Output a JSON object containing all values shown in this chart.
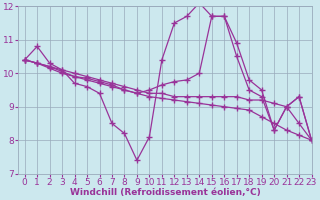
{
  "lines": [
    {
      "x": [
        0,
        1,
        2,
        3,
        4,
        5,
        6,
        7,
        8,
        9,
        10,
        11,
        12,
        13,
        14,
        15,
        16,
        17,
        18,
        19,
        20,
        21,
        22,
        23
      ],
      "y": [
        10.4,
        10.8,
        10.3,
        10.1,
        9.7,
        9.6,
        9.4,
        8.5,
        8.2,
        7.4,
        8.1,
        10.4,
        11.5,
        11.7,
        12.1,
        11.7,
        11.7,
        10.9,
        9.8,
        9.5,
        8.3,
        9.0,
        9.3,
        8.0
      ]
    },
    {
      "x": [
        0,
        1,
        2,
        3,
        4,
        5,
        6,
        7,
        8,
        9,
        10,
        11,
        12,
        13,
        14,
        15,
        16,
        17,
        18,
        19,
        20,
        21,
        22,
        23
      ],
      "y": [
        10.4,
        10.3,
        10.2,
        10.1,
        10.0,
        9.9,
        9.8,
        9.7,
        9.6,
        9.5,
        9.4,
        9.4,
        9.3,
        9.3,
        9.3,
        9.3,
        9.3,
        9.3,
        9.2,
        9.2,
        9.1,
        9.0,
        8.5,
        8.0
      ]
    },
    {
      "x": [
        0,
        1,
        2,
        3,
        4,
        5,
        6,
        7,
        8,
        9,
        10,
        11,
        12,
        13,
        14,
        15,
        16,
        17,
        18,
        19,
        20,
        21,
        22,
        23
      ],
      "y": [
        10.4,
        10.3,
        10.15,
        10.0,
        9.9,
        9.8,
        9.7,
        9.6,
        9.5,
        9.4,
        9.3,
        9.25,
        9.2,
        9.15,
        9.1,
        9.05,
        9.0,
        8.95,
        8.9,
        8.7,
        8.5,
        8.3,
        8.15,
        8.0
      ]
    },
    {
      "x": [
        0,
        1,
        2,
        3,
        4,
        5,
        6,
        7,
        8,
        9,
        10,
        11,
        12,
        13,
        14,
        15,
        16,
        17,
        18,
        19,
        20,
        21,
        22,
        23
      ],
      "y": [
        10.4,
        10.3,
        10.2,
        10.05,
        9.9,
        9.85,
        9.75,
        9.65,
        9.5,
        9.4,
        9.5,
        9.65,
        9.75,
        9.8,
        10.0,
        11.7,
        11.7,
        10.5,
        9.5,
        9.3,
        8.3,
        9.0,
        9.3,
        8.0
      ]
    }
  ],
  "xlabel": "Windchill (Refroidissement éolien,°C)",
  "xlim": [
    -0.5,
    23
  ],
  "ylim": [
    7,
    12
  ],
  "yticks": [
    7,
    8,
    9,
    10,
    11,
    12
  ],
  "xticks": [
    0,
    1,
    2,
    3,
    4,
    5,
    6,
    7,
    8,
    9,
    10,
    11,
    12,
    13,
    14,
    15,
    16,
    17,
    18,
    19,
    20,
    21,
    22,
    23
  ],
  "bg_color": "#cce8ee",
  "line_color": "#993399",
  "grid_color": "#99aabb",
  "marker": "+",
  "markersize": 4,
  "linewidth": 0.9,
  "xlabel_fontsize": 6.5,
  "tick_fontsize": 6.5
}
